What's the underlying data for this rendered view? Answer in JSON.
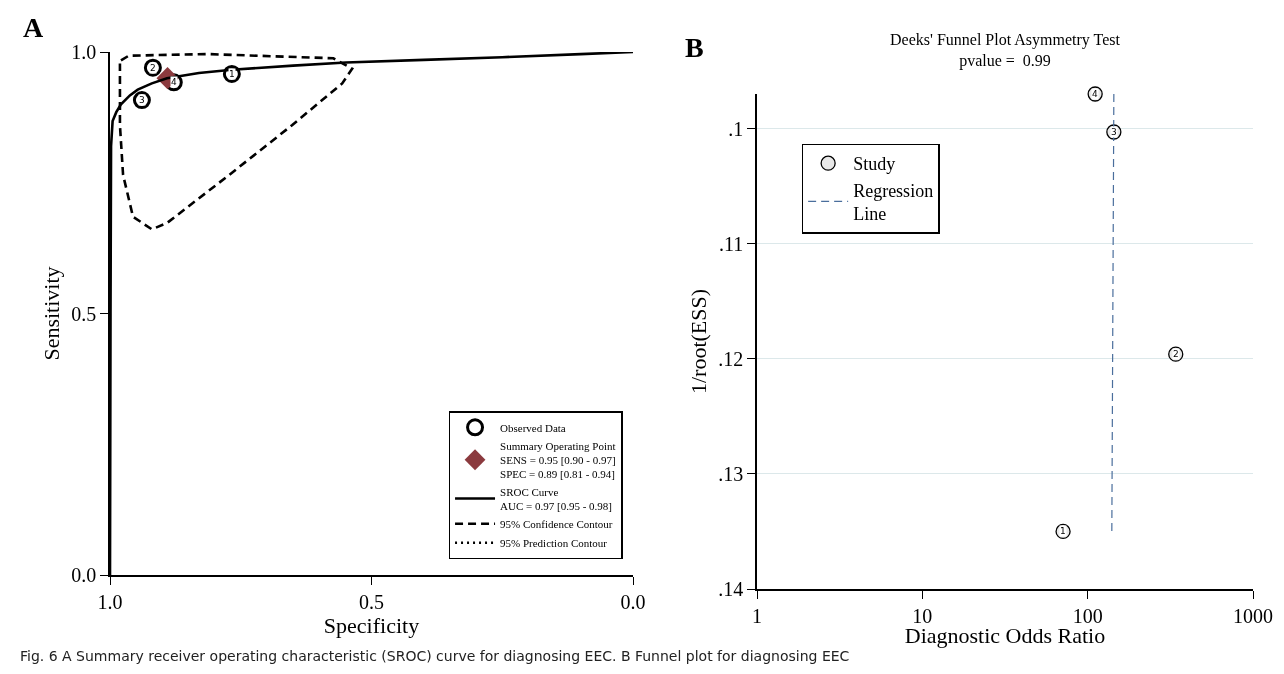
{
  "chart_data": [
    {
      "type": "line",
      "xlabel": "Specificity",
      "ylabel": "Sensitivity",
      "xlim": [
        1,
        0
      ],
      "ylim": [
        0,
        1
      ],
      "xticks": [
        {
          "value": 1,
          "label": "1.0"
        },
        {
          "value": 0.5,
          "label": "0.5"
        },
        {
          "value": 0,
          "label": "0.0"
        }
      ],
      "yticks": [
        {
          "value": 0,
          "label": "0.0"
        },
        {
          "value": 0.5,
          "label": "0.5"
        },
        {
          "value": 1,
          "label": "1.0"
        }
      ],
      "legend": "bottom right",
      "annotations": [
        "A",
        "Fig. 6  A Summary receiver operating characteristic (SROC) curve for diagnosing EEC. B Funnel plot for diagnosing EEC",
        {
          "text": "1",
          "x": 0.767,
          "y": 0.958
        },
        {
          "text": "2",
          "x": 0.918,
          "y": 0.97
        },
        {
          "text": "3",
          "x": 0.939,
          "y": 0.908
        },
        {
          "text": "4",
          "x": 0.878,
          "y": 0.942
        }
      ],
      "series": [
        {
          "name": "Observed Data",
          "type": "scatter",
          "marker": "circle",
          "color": "#000000",
          "x": [
            0.767,
            0.918,
            0.939,
            0.878
          ],
          "values": [
            0.958,
            0.97,
            0.908,
            0.942
          ]
        },
        {
          "name": "Summary Operating Point\nSENS = 0.95 [0.90 - 0.97]\nSPEC = 0.89 [0.81 - 0.94]",
          "type": "scatter",
          "marker": "diamond",
          "color": "#8b3a3e",
          "x": [
            0.89
          ],
          "values": [
            0.95
          ]
        },
        {
          "name": "SROC Curve\nAUC = 0.97 [0.95 - 0.98]",
          "line_style": "solid",
          "color": "#000000",
          "x": [
            1.0,
            0.999,
            0.998,
            0.995,
            0.988,
            0.979,
            0.962,
            0.947,
            0.92,
            0.891,
            0.83,
            0.767,
            0.65,
            0.549,
            0.4,
            0.25,
            0.1,
            0.0
          ],
          "values": [
            0.0,
            0.5,
            0.82,
            0.868,
            0.885,
            0.9,
            0.917,
            0.928,
            0.94,
            0.95,
            0.96,
            0.966,
            0.974,
            0.98,
            0.985,
            0.99,
            0.996,
            1.0
          ]
        },
        {
          "name": "95% Confidence Contour",
          "line_style": "dashed",
          "color": "#000000",
          "x": [
            0.979,
            0.964,
            0.812,
            0.573,
            0.537,
            0.556,
            0.652,
            0.772,
            0.891,
            0.92,
            0.956,
            0.975,
            0.981,
            0.981
          ],
          "values": [
            0.984,
            0.993,
            0.996,
            0.988,
            0.968,
            0.94,
            0.86,
            0.765,
            0.673,
            0.661,
            0.685,
            0.765,
            0.86,
            0.978
          ]
        },
        {
          "name": "95% Prediction Contour",
          "line_style": "dotted",
          "color": "#000000"
        }
      ]
    },
    {
      "type": "scatter",
      "title": "Deeks' Funnel Plot Asymmetry Test",
      "subtitle": "pvalue =  0.99",
      "xlabel": "Diagnostic Odds Ratio",
      "ylabel": "1/root(ESS)",
      "log": "x",
      "xlim": [
        1,
        1000
      ],
      "xticks": [
        1,
        10,
        100,
        1000
      ],
      "ylim": [
        0.14,
        0.097
      ],
      "yticks": [
        {
          "value": 0.1,
          "label": ".1"
        },
        {
          "value": 0.11,
          "label": ".11"
        },
        {
          "value": 0.12,
          "label": ".12"
        },
        {
          "value": 0.13,
          "label": ".13"
        },
        {
          "value": 0.14,
          "label": ".14"
        }
      ],
      "grid": "y",
      "legend": "top left",
      "annotations": [
        "B",
        {
          "text": "1",
          "x": 71,
          "y": 0.135
        },
        {
          "text": "2",
          "x": 341,
          "y": 0.1196
        },
        {
          "text": "3",
          "x": 144,
          "y": 0.1003
        },
        {
          "text": "4",
          "x": 111,
          "y": 0.097
        }
      ],
      "series": [
        {
          "name": "Study",
          "marker": "circle",
          "color": "#e8e8e8",
          "x": [
            71,
            341,
            144,
            111
          ],
          "values": [
            0.135,
            0.1196,
            0.1003,
            0.097
          ]
        },
        {
          "name": "Regression\nLine",
          "type": "line",
          "line_style": "dashed",
          "color": "#4a6e9c",
          "x": [
            144,
            140
          ],
          "values": [
            0.097,
            0.135
          ]
        }
      ]
    }
  ]
}
